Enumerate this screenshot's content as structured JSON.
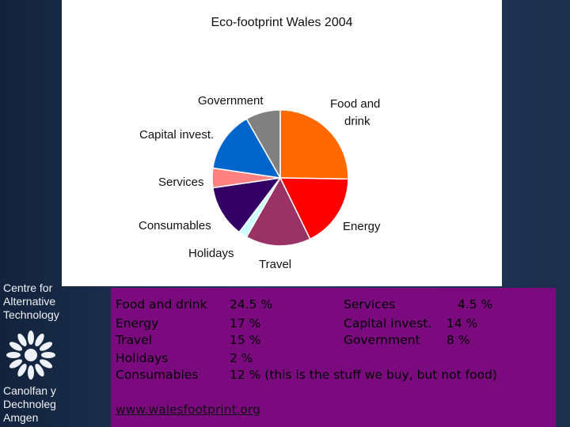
{
  "chart_data": {
    "type": "pie",
    "title": "Eco-footprint Wales 2004",
    "categories": [
      "Food and drink",
      "Energy",
      "Travel",
      "Holidays",
      "Consumables",
      "Services",
      "Capital invest.",
      "Government"
    ],
    "values": [
      24.5,
      17,
      15,
      2,
      12,
      4.5,
      14,
      8
    ],
    "colors": [
      "#ff6a00",
      "#ff0000",
      "#993366",
      "#ccffff",
      "#330066",
      "#ff8080",
      "#0066cc",
      "#808080"
    ],
    "labels": {
      "food": [
        "Food and",
        "drink"
      ],
      "energy": "Energy",
      "travel": "Travel",
      "holidays": "Holidays",
      "consumables": "Consumables",
      "services": "Services",
      "capital": "Capital invest.",
      "government": "Government"
    }
  },
  "info": {
    "rows": [
      {
        "name": "Food and drink",
        "value": "24.5 %"
      },
      {
        "name": "Energy",
        "value": "17 %"
      },
      {
        "name": "Travel",
        "value": "15 %"
      },
      {
        "name": "Holidays",
        "value": "2 %"
      },
      {
        "name": "Consumables",
        "value": "12 % (this is the stuff we buy, but not food)"
      }
    ],
    "right": [
      {
        "name": "Services",
        "value": "4.5 %"
      },
      {
        "name": "Capital invest.",
        "value": "14 %"
      },
      {
        "name": "Government",
        "value": "8 %"
      }
    ],
    "website": "www.walesfootprint.org"
  },
  "logo": {
    "lines_top": [
      "Centre for",
      "Alternative",
      "Technology"
    ],
    "lines_bottom": [
      "Canolfan y",
      "Dechnoleg",
      "Amgen"
    ],
    "icon": "cat-emblem-icon"
  }
}
